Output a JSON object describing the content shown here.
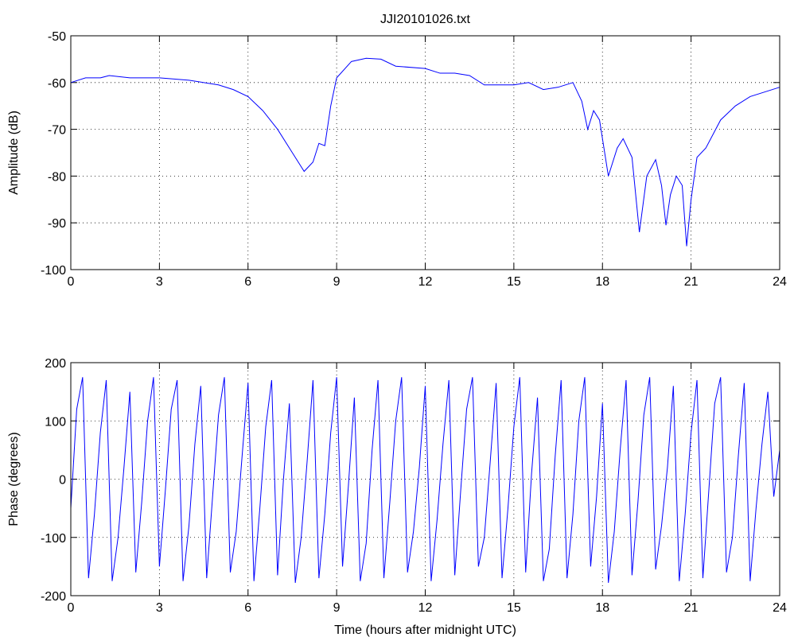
{
  "chart_data": [
    {
      "type": "line",
      "title": "JJI20101026.txt",
      "ylabel": "Amplitude (dB)",
      "x": [
        0,
        0.5,
        1,
        1.3,
        2,
        3,
        4,
        5,
        5.5,
        6,
        6.5,
        7,
        7.5,
        7.9,
        8.2,
        8.4,
        8.6,
        8.8,
        9,
        9.5,
        10,
        10.5,
        11,
        12,
        12.5,
        13,
        13.5,
        14,
        15,
        15.5,
        16,
        16.5,
        17,
        17.3,
        17.5,
        17.7,
        17.9,
        18.2,
        18.5,
        18.7,
        19,
        19.25,
        19.5,
        19.8,
        20,
        20.15,
        20.3,
        20.5,
        20.7,
        20.85,
        21,
        21.2,
        21.5,
        22,
        22.5,
        23,
        23.5,
        24
      ],
      "series": [
        {
          "color": "#0000ff",
          "values": [
            -60,
            -59,
            -59,
            -58.5,
            -59,
            -59,
            -59.5,
            -60.5,
            -61.5,
            -63,
            -66,
            -70,
            -75,
            -79,
            -77,
            -73,
            -73.5,
            -65,
            -59,
            -55.5,
            -54.8,
            -55,
            -56.5,
            -57,
            -58,
            -58,
            -58.5,
            -60.5,
            -60.5,
            -60,
            -61.5,
            -61,
            -60,
            -64,
            -70,
            -66,
            -68,
            -80,
            -74,
            -72,
            -76,
            -92,
            -80,
            -76.5,
            -82,
            -90.5,
            -84,
            -80,
            -82,
            -95,
            -85,
            -76,
            -74,
            -68,
            -65,
            -63,
            -62,
            -61
          ]
        }
      ],
      "xlim": [
        0,
        24
      ],
      "xticks": [
        0,
        3,
        6,
        9,
        12,
        15,
        18,
        21,
        24
      ],
      "ylim": [
        -100,
        -50
      ],
      "yticks": [
        -100,
        -90,
        -80,
        -70,
        -60,
        -50
      ],
      "grid": true
    },
    {
      "type": "line",
      "ylabel": "Phase (degrees)",
      "xlabel": "Time (hours after midnight UTC)",
      "x": [
        0,
        0.2,
        0.4,
        0.6,
        0.8,
        1,
        1.2,
        1.4,
        1.6,
        1.8,
        2,
        2.2,
        2.4,
        2.6,
        2.8,
        3,
        3.2,
        3.4,
        3.6,
        3.8,
        4,
        4.2,
        4.4,
        4.6,
        4.8,
        5,
        5.2,
        5.4,
        5.6,
        5.8,
        6,
        6.2,
        6.4,
        6.6,
        6.8,
        7,
        7.2,
        7.4,
        7.6,
        7.8,
        8,
        8.2,
        8.4,
        8.6,
        8.8,
        9,
        9.2,
        9.4,
        9.6,
        9.8,
        10,
        10.2,
        10.4,
        10.6,
        10.8,
        11,
        11.2,
        11.4,
        11.6,
        11.8,
        12,
        12.2,
        12.4,
        12.6,
        12.8,
        13,
        13.2,
        13.4,
        13.6,
        13.8,
        14,
        14.2,
        14.4,
        14.6,
        14.8,
        15,
        15.2,
        15.4,
        15.6,
        15.8,
        16,
        16.2,
        16.4,
        16.6,
        16.8,
        17,
        17.2,
        17.4,
        17.6,
        17.8,
        18,
        18.2,
        18.4,
        18.6,
        18.8,
        19,
        19.2,
        19.4,
        19.6,
        19.8,
        20,
        20.2,
        20.4,
        20.6,
        20.8,
        21,
        21.2,
        21.4,
        21.6,
        21.8,
        22,
        22.2,
        22.4,
        22.6,
        22.8,
        23,
        23.2,
        23.4,
        23.6,
        23.8,
        24
      ],
      "series": [
        {
          "color": "#0000ff",
          "values": [
            -50,
            120,
            175,
            -170,
            -60,
            80,
            170,
            -175,
            -100,
            20,
            150,
            -160,
            -40,
            100,
            175,
            -150,
            -20,
            120,
            170,
            -175,
            -80,
            60,
            160,
            -170,
            -30,
            110,
            175,
            -160,
            -90,
            40,
            165,
            -175,
            -50,
            90,
            170,
            -165,
            0,
            130,
            -178,
            -100,
            30,
            170,
            -170,
            -60,
            80,
            175,
            -150,
            -10,
            140,
            -175,
            -110,
            50,
            170,
            -170,
            -40,
            100,
            175,
            -160,
            -90,
            20,
            160,
            -175,
            -70,
            60,
            170,
            -165,
            -20,
            120,
            175,
            -150,
            -100,
            30,
            165,
            -170,
            -50,
            90,
            175,
            -160,
            10,
            140,
            -175,
            -120,
            40,
            170,
            -170,
            -60,
            100,
            175,
            -150,
            -30,
            130,
            -178,
            -90,
            50,
            170,
            -165,
            -40,
            110,
            175,
            -155,
            -80,
            20,
            160,
            -175,
            -60,
            80,
            170,
            -170,
            -20,
            130,
            175,
            -160,
            -100,
            40,
            165,
            -175,
            -50,
            60,
            150,
            -30,
            50
          ]
        }
      ],
      "xlim": [
        0,
        24
      ],
      "xticks": [
        0,
        3,
        6,
        9,
        12,
        15,
        18,
        21,
        24
      ],
      "ylim": [
        -200,
        200
      ],
      "yticks": [
        -200,
        -100,
        0,
        100,
        200
      ],
      "grid": true
    }
  ]
}
